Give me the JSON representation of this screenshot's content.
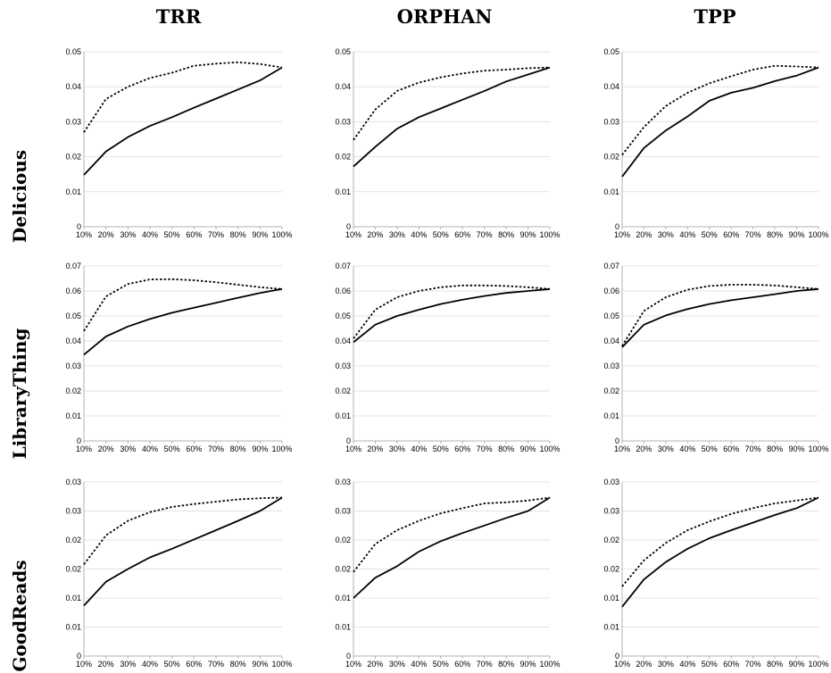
{
  "columns": [
    "TRR",
    "ORPHAN",
    "TPP"
  ],
  "rows": [
    "Delicious",
    "LibraryThing",
    "GoodReads"
  ],
  "chart_data": [
    {
      "type": "line",
      "row": "Delicious",
      "column": "TRR",
      "categories": [
        "10%",
        "20%",
        "30%",
        "40%",
        "50%",
        "60%",
        "70%",
        "80%",
        "90%",
        "100%"
      ],
      "ylim": [
        0,
        0.05
      ],
      "yticks": [
        {
          "v": 0,
          "label": "0"
        },
        {
          "v": 0.01,
          "label": "0.01"
        },
        {
          "v": 0.02,
          "label": "0.02"
        },
        {
          "v": 0.03,
          "label": "0.03"
        },
        {
          "v": 0.04,
          "label": "0.04"
        },
        {
          "v": 0.05,
          "label": "0.05"
        }
      ],
      "grid": true,
      "series": [
        {
          "style": "solid",
          "values": [
            0.0148,
            0.0215,
            0.0256,
            0.0288,
            0.0313,
            0.034,
            0.0366,
            0.0392,
            0.0418,
            0.0455
          ]
        },
        {
          "style": "dotted",
          "values": [
            0.027,
            0.0365,
            0.04,
            0.0425,
            0.044,
            0.046,
            0.0466,
            0.047,
            0.0465,
            0.0455
          ]
        }
      ]
    },
    {
      "type": "line",
      "row": "Delicious",
      "column": "ORPHAN",
      "categories": [
        "10%",
        "20%",
        "30%",
        "40%",
        "50%",
        "60%",
        "70%",
        "80%",
        "90%",
        "100%"
      ],
      "ylim": [
        0,
        0.05
      ],
      "yticks": [
        {
          "v": 0,
          "label": "0"
        },
        {
          "v": 0.01,
          "label": "0.01"
        },
        {
          "v": 0.02,
          "label": "0.02"
        },
        {
          "v": 0.03,
          "label": "0.03"
        },
        {
          "v": 0.04,
          "label": "0.04"
        },
        {
          "v": 0.05,
          "label": "0.05"
        }
      ],
      "grid": true,
      "series": [
        {
          "style": "solid",
          "values": [
            0.0172,
            0.0228,
            0.028,
            0.0313,
            0.0338,
            0.0363,
            0.0388,
            0.0415,
            0.0435,
            0.0455
          ]
        },
        {
          "style": "dotted",
          "values": [
            0.0248,
            0.0335,
            0.0388,
            0.0412,
            0.0427,
            0.0438,
            0.0446,
            0.0449,
            0.0453,
            0.0455
          ]
        }
      ]
    },
    {
      "type": "line",
      "row": "Delicious",
      "column": "TPP",
      "categories": [
        "10%",
        "20%",
        "30%",
        "40%",
        "50%",
        "60%",
        "70%",
        "80%",
        "90%",
        "100%"
      ],
      "ylim": [
        0,
        0.05
      ],
      "yticks": [
        {
          "v": 0,
          "label": "0"
        },
        {
          "v": 0.01,
          "label": "0.01"
        },
        {
          "v": 0.02,
          "label": "0.02"
        },
        {
          "v": 0.03,
          "label": "0.03"
        },
        {
          "v": 0.04,
          "label": "0.04"
        },
        {
          "v": 0.05,
          "label": "0.05"
        }
      ],
      "grid": true,
      "series": [
        {
          "style": "solid",
          "values": [
            0.0143,
            0.0225,
            0.0275,
            0.0315,
            0.036,
            0.0383,
            0.0397,
            0.0416,
            0.0432,
            0.0455
          ]
        },
        {
          "style": "dotted",
          "values": [
            0.0205,
            0.0285,
            0.0345,
            0.0383,
            0.041,
            0.043,
            0.0449,
            0.046,
            0.0458,
            0.0455
          ]
        }
      ]
    },
    {
      "type": "line",
      "row": "LibraryThing",
      "column": "TRR",
      "categories": [
        "10%",
        "20%",
        "30%",
        "40%",
        "50%",
        "60%",
        "70%",
        "80%",
        "90%",
        "100%"
      ],
      "ylim": [
        0,
        0.07
      ],
      "yticks": [
        {
          "v": 0,
          "label": "0"
        },
        {
          "v": 0.01,
          "label": "0.01"
        },
        {
          "v": 0.02,
          "label": "0.02"
        },
        {
          "v": 0.03,
          "label": "0.03"
        },
        {
          "v": 0.04,
          "label": "0.04"
        },
        {
          "v": 0.05,
          "label": "0.05"
        },
        {
          "v": 0.06,
          "label": "0.06"
        },
        {
          "v": 0.07,
          "label": "0.07"
        }
      ],
      "grid": true,
      "series": [
        {
          "style": "solid",
          "values": [
            0.0345,
            0.0418,
            0.0458,
            0.0488,
            0.0513,
            0.0533,
            0.0553,
            0.0573,
            0.0592,
            0.0608
          ]
        },
        {
          "style": "dotted",
          "values": [
            0.044,
            0.0578,
            0.0628,
            0.0646,
            0.0647,
            0.0643,
            0.0635,
            0.0625,
            0.0615,
            0.0608
          ]
        }
      ]
    },
    {
      "type": "line",
      "row": "LibraryThing",
      "column": "ORPHAN",
      "categories": [
        "10%",
        "20%",
        "30%",
        "40%",
        "50%",
        "60%",
        "70%",
        "80%",
        "90%",
        "100%"
      ],
      "ylim": [
        0,
        0.07
      ],
      "yticks": [
        {
          "v": 0,
          "label": "0"
        },
        {
          "v": 0.01,
          "label": "0.01"
        },
        {
          "v": 0.02,
          "label": "0.02"
        },
        {
          "v": 0.03,
          "label": "0.03"
        },
        {
          "v": 0.04,
          "label": "0.04"
        },
        {
          "v": 0.05,
          "label": "0.05"
        },
        {
          "v": 0.06,
          "label": "0.06"
        },
        {
          "v": 0.07,
          "label": "0.07"
        }
      ],
      "grid": true,
      "series": [
        {
          "style": "solid",
          "values": [
            0.0395,
            0.0465,
            0.05,
            0.0525,
            0.0548,
            0.0565,
            0.058,
            0.0592,
            0.06,
            0.0608
          ]
        },
        {
          "style": "dotted",
          "values": [
            0.041,
            0.0525,
            0.0575,
            0.06,
            0.0615,
            0.0622,
            0.0622,
            0.062,
            0.0615,
            0.0608
          ]
        }
      ]
    },
    {
      "type": "line",
      "row": "LibraryThing",
      "column": "TPP",
      "categories": [
        "10%",
        "20%",
        "30%",
        "40%",
        "50%",
        "60%",
        "70%",
        "80%",
        "90%",
        "100%"
      ],
      "ylim": [
        0,
        0.07
      ],
      "yticks": [
        {
          "v": 0,
          "label": "0"
        },
        {
          "v": 0.01,
          "label": "0.01"
        },
        {
          "v": 0.02,
          "label": "0.02"
        },
        {
          "v": 0.03,
          "label": "0.03"
        },
        {
          "v": 0.04,
          "label": "0.04"
        },
        {
          "v": 0.05,
          "label": "0.05"
        },
        {
          "v": 0.06,
          "label": "0.06"
        },
        {
          "v": 0.07,
          "label": "0.07"
        }
      ],
      "grid": true,
      "series": [
        {
          "style": "solid",
          "values": [
            0.0375,
            0.0465,
            0.0502,
            0.0528,
            0.0548,
            0.0563,
            0.0575,
            0.0587,
            0.06,
            0.0608
          ]
        },
        {
          "style": "dotted",
          "values": [
            0.038,
            0.052,
            0.0575,
            0.0605,
            0.062,
            0.0625,
            0.0625,
            0.0622,
            0.0615,
            0.0608
          ]
        }
      ]
    },
    {
      "type": "line",
      "row": "GoodReads",
      "column": "TRR",
      "categories": [
        "10%",
        "20%",
        "30%",
        "40%",
        "50%",
        "60%",
        "70%",
        "80%",
        "90%",
        "100%"
      ],
      "ylim": [
        0,
        0.03
      ],
      "ytick_step": 0.005,
      "yticks": [
        {
          "v": 0,
          "label": "0"
        },
        {
          "v": 0.005,
          "label": "0.01"
        },
        {
          "v": 0.01,
          "label": "0.01"
        },
        {
          "v": 0.015,
          "label": "0.02"
        },
        {
          "v": 0.02,
          "label": "0.02"
        },
        {
          "v": 0.025,
          "label": "0.03"
        },
        {
          "v": 0.03,
          "label": "0.03"
        }
      ],
      "grid": true,
      "series": [
        {
          "style": "solid",
          "values": [
            0.0087,
            0.0128,
            0.015,
            0.017,
            0.0185,
            0.0201,
            0.0217,
            0.0233,
            0.025,
            0.0273
          ]
        },
        {
          "style": "dotted",
          "values": [
            0.0158,
            0.0208,
            0.0233,
            0.0248,
            0.0257,
            0.0262,
            0.0266,
            0.027,
            0.0272,
            0.0273
          ]
        }
      ]
    },
    {
      "type": "line",
      "row": "GoodReads",
      "column": "ORPHAN",
      "categories": [
        "10%",
        "20%",
        "30%",
        "40%",
        "50%",
        "60%",
        "70%",
        "80%",
        "90%",
        "100%"
      ],
      "ylim": [
        0,
        0.03
      ],
      "ytick_step": 0.005,
      "yticks": [
        {
          "v": 0,
          "label": "0"
        },
        {
          "v": 0.005,
          "label": "0.01"
        },
        {
          "v": 0.01,
          "label": "0.01"
        },
        {
          "v": 0.015,
          "label": "0.02"
        },
        {
          "v": 0.02,
          "label": "0.02"
        },
        {
          "v": 0.025,
          "label": "0.03"
        },
        {
          "v": 0.03,
          "label": "0.03"
        }
      ],
      "grid": true,
      "series": [
        {
          "style": "solid",
          "values": [
            0.01,
            0.0135,
            0.0155,
            0.018,
            0.0198,
            0.0212,
            0.0225,
            0.0238,
            0.025,
            0.0273
          ]
        },
        {
          "style": "dotted",
          "values": [
            0.0145,
            0.0193,
            0.0217,
            0.0233,
            0.0246,
            0.0255,
            0.0263,
            0.0265,
            0.0268,
            0.0273
          ]
        }
      ]
    },
    {
      "type": "line",
      "row": "GoodReads",
      "column": "TPP",
      "categories": [
        "10%",
        "20%",
        "30%",
        "40%",
        "50%",
        "60%",
        "70%",
        "80%",
        "90%",
        "100%"
      ],
      "ylim": [
        0,
        0.03
      ],
      "ytick_step": 0.005,
      "yticks": [
        {
          "v": 0,
          "label": "0"
        },
        {
          "v": 0.005,
          "label": "0.01"
        },
        {
          "v": 0.01,
          "label": "0.01"
        },
        {
          "v": 0.015,
          "label": "0.02"
        },
        {
          "v": 0.02,
          "label": "0.02"
        },
        {
          "v": 0.025,
          "label": "0.03"
        },
        {
          "v": 0.03,
          "label": "0.03"
        }
      ],
      "grid": true,
      "series": [
        {
          "style": "solid",
          "values": [
            0.0085,
            0.0132,
            0.0162,
            0.0185,
            0.0203,
            0.0217,
            0.023,
            0.0243,
            0.0255,
            0.0273
          ]
        },
        {
          "style": "dotted",
          "values": [
            0.012,
            0.0165,
            0.0195,
            0.0217,
            0.0232,
            0.0245,
            0.0255,
            0.0263,
            0.0268,
            0.0273
          ]
        }
      ]
    }
  ]
}
